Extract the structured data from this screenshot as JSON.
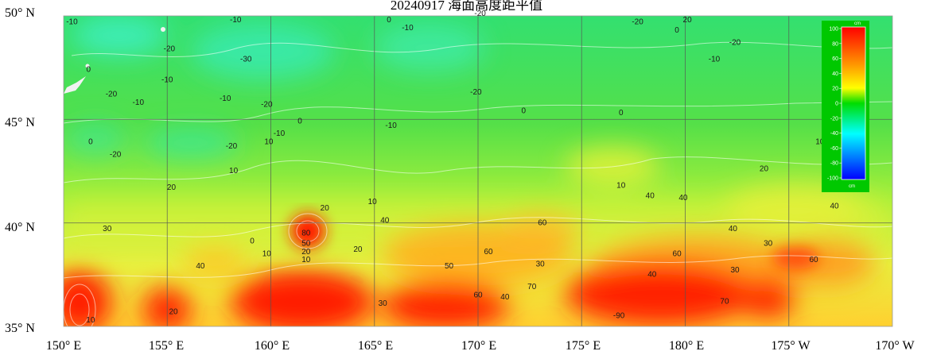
{
  "title": "20240917 海面高度距平值",
  "lat_labels": [
    "50° N",
    "45° N",
    "40° N",
    "35° N"
  ],
  "lon_labels": [
    "150° E",
    "155° E",
    "160° E",
    "165° E",
    "170° E",
    "175° E",
    "180° E",
    "175° W",
    "170° W"
  ],
  "colorbar": {
    "unit_top": "cm",
    "unit_bottom": "cm",
    "ticks": [
      "100",
      "80",
      "60",
      "40",
      "20",
      "0",
      "-20",
      "-40",
      "-60",
      "-80",
      "-100"
    ],
    "colors": [
      "#ff0000",
      "#ff8800",
      "#ffff00",
      "#00dd00",
      "#00ffff",
      "#0000ff"
    ]
  },
  "contour_labels": [
    {
      "text": "-10",
      "lon": 150.4,
      "lat": 49.6
    },
    {
      "text": "-10",
      "lon": 158.3,
      "lat": 49.7
    },
    {
      "text": "-20",
      "lon": 155.1,
      "lat": 48.3
    },
    {
      "text": "-30",
      "lon": 158.8,
      "lat": 47.8
    },
    {
      "text": "0",
      "lon": 151.2,
      "lat": 47.3
    },
    {
      "text": "-10",
      "lon": 155.0,
      "lat": 46.8
    },
    {
      "text": "-20",
      "lon": 152.3,
      "lat": 46.1
    },
    {
      "text": "-10",
      "lon": 153.6,
      "lat": 45.7
    },
    {
      "text": "-10",
      "lon": 157.8,
      "lat": 45.9
    },
    {
      "text": "-20",
      "lon": 159.8,
      "lat": 45.6
    },
    {
      "text": "0",
      "lon": 165.7,
      "lat": 49.7
    },
    {
      "text": "-10",
      "lon": 166.6,
      "lat": 49.3
    },
    {
      "text": "-20",
      "lon": 170.1,
      "lat": 50.0
    },
    {
      "text": "-20",
      "lon": 169.9,
      "lat": 46.2
    },
    {
      "text": "0",
      "lon": 172.2,
      "lat": 45.3
    },
    {
      "text": "-20",
      "lon": 177.7,
      "lat": 49.6
    },
    {
      "text": "20",
      "lon": 180.1,
      "lat": 49.7
    },
    {
      "text": "0",
      "lon": 179.6,
      "lat": 49.2
    },
    {
      "text": "-20",
      "lon": 182.4,
      "lat": 48.6
    },
    {
      "text": "-10",
      "lon": 181.4,
      "lat": 47.8
    },
    {
      "text": "0",
      "lon": 176.9,
      "lat": 45.2
    },
    {
      "text": "-10",
      "lon": 165.8,
      "lat": 44.6
    },
    {
      "text": "0",
      "lon": 151.3,
      "lat": 43.8
    },
    {
      "text": "-20",
      "lon": 152.5,
      "lat": 43.2
    },
    {
      "text": "-10",
      "lon": 160.4,
      "lat": 44.2
    },
    {
      "text": "0",
      "lon": 161.4,
      "lat": 44.8
    },
    {
      "text": "-20",
      "lon": 158.1,
      "lat": 43.6
    },
    {
      "text": "10",
      "lon": 159.9,
      "lat": 43.8
    },
    {
      "text": "10",
      "lon": 158.2,
      "lat": 42.4
    },
    {
      "text": "20",
      "lon": 155.2,
      "lat": 41.6
    },
    {
      "text": "10",
      "lon": 186.5,
      "lat": 43.8
    },
    {
      "text": "20",
      "lon": 183.8,
      "lat": 42.5
    },
    {
      "text": "10",
      "lon": 176.9,
      "lat": 41.7
    },
    {
      "text": "40",
      "lon": 178.3,
      "lat": 41.2
    },
    {
      "text": "40",
      "lon": 179.9,
      "lat": 41.1
    },
    {
      "text": "40",
      "lon": 187.2,
      "lat": 40.7
    },
    {
      "text": "20",
      "lon": 162.6,
      "lat": 40.6
    },
    {
      "text": "10",
      "lon": 164.9,
      "lat": 40.9
    },
    {
      "text": "40",
      "lon": 165.5,
      "lat": 40.0
    },
    {
      "text": "60",
      "lon": 173.1,
      "lat": 39.9
    },
    {
      "text": "30",
      "lon": 152.1,
      "lat": 39.6
    },
    {
      "text": "80",
      "lon": 161.7,
      "lat": 39.4
    },
    {
      "text": "50",
      "lon": 161.7,
      "lat": 38.9
    },
    {
      "text": "20",
      "lon": 161.7,
      "lat": 38.5
    },
    {
      "text": "10",
      "lon": 161.7,
      "lat": 38.1
    },
    {
      "text": "0",
      "lon": 159.1,
      "lat": 39.0
    },
    {
      "text": "10",
      "lon": 159.8,
      "lat": 38.4
    },
    {
      "text": "20",
      "lon": 164.2,
      "lat": 38.6
    },
    {
      "text": "40",
      "lon": 156.6,
      "lat": 37.8
    },
    {
      "text": "60",
      "lon": 170.5,
      "lat": 38.5
    },
    {
      "text": "40",
      "lon": 182.3,
      "lat": 39.6
    },
    {
      "text": "30",
      "lon": 184.0,
      "lat": 38.9
    },
    {
      "text": "60",
      "lon": 179.6,
      "lat": 38.4
    },
    {
      "text": "60",
      "lon": 186.2,
      "lat": 38.1
    },
    {
      "text": "30",
      "lon": 173.0,
      "lat": 37.9
    },
    {
      "text": "50",
      "lon": 168.6,
      "lat": 37.8
    },
    {
      "text": "30",
      "lon": 182.4,
      "lat": 37.6
    },
    {
      "text": "40",
      "lon": 178.4,
      "lat": 37.4
    },
    {
      "text": "70",
      "lon": 172.6,
      "lat": 36.8
    },
    {
      "text": "60",
      "lon": 170.0,
      "lat": 36.4
    },
    {
      "text": "40",
      "lon": 171.3,
      "lat": 36.3
    },
    {
      "text": "30",
      "lon": 165.4,
      "lat": 36.0
    },
    {
      "text": "20",
      "lon": 155.3,
      "lat": 35.6
    },
    {
      "text": "10",
      "lon": 151.3,
      "lat": 35.2
    },
    {
      "text": "70",
      "lon": 181.9,
      "lat": 36.1
    },
    {
      "text": "-90",
      "lon": 176.8,
      "lat": 35.4
    }
  ]
}
